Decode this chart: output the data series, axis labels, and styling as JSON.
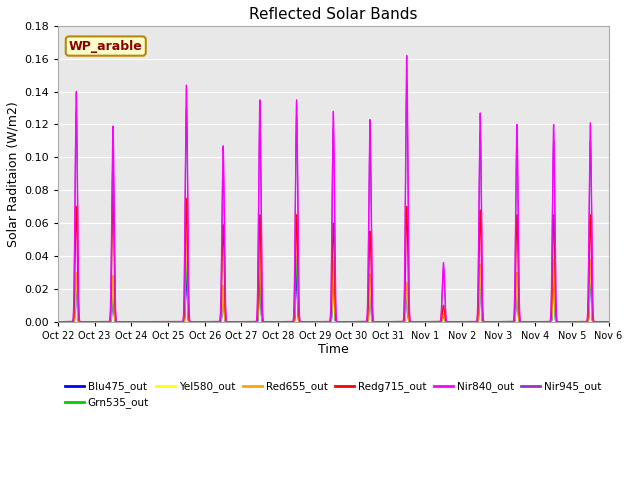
{
  "title": "Reflected Solar Bands",
  "xlabel": "Time",
  "ylabel": "Solar Raditaion (W/m2)",
  "annotation": "WP_arable",
  "ylim": [
    0,
    0.18
  ],
  "yticks": [
    0.0,
    0.02,
    0.04,
    0.06,
    0.08,
    0.1,
    0.12,
    0.14,
    0.16,
    0.18
  ],
  "xtick_labels": [
    "Oct 22",
    "Oct 23",
    "Oct 24",
    "Oct 25",
    "Oct 26",
    "Oct 27",
    "Oct 28",
    "Oct 29",
    "Oct 30",
    "Oct 31",
    "Nov 1",
    "Nov 2",
    "Nov 3",
    "Nov 4",
    "Nov 5",
    "Nov 6"
  ],
  "n_days": 15,
  "legend_entries": [
    "Blu475_out",
    "Grn535_out",
    "Yel580_out",
    "Red655_out",
    "Redg715_out",
    "Nir840_out",
    "Nir945_out"
  ],
  "line_colors": [
    "blue",
    "#00cc00",
    "yellow",
    "#FFA500",
    "red",
    "magenta",
    "#9932CC"
  ],
  "plot_bg": "#e8e8e8",
  "peak_heights_nir840": [
    0.14,
    0.119,
    0.001,
    0.144,
    0.107,
    0.135,
    0.135,
    0.128,
    0.123,
    0.162,
    0.036,
    0.127,
    0.12,
    0.12,
    0.121
  ],
  "peak_heights_blu": [
    0.025,
    0.017,
    0.001,
    0.029,
    0.018,
    0.03,
    0.03,
    0.029,
    0.025,
    0.018,
    0.004,
    0.029,
    0.025,
    0.031,
    0.031
  ],
  "peak_heights_grn": [
    0.027,
    0.028,
    0.001,
    0.038,
    0.02,
    0.04,
    0.04,
    0.032,
    0.027,
    0.022,
    0.004,
    0.032,
    0.027,
    0.033,
    0.033
  ],
  "peak_heights_yel": [
    0.03,
    0.028,
    0.001,
    0.055,
    0.022,
    0.063,
    0.065,
    0.037,
    0.029,
    0.024,
    0.005,
    0.035,
    0.03,
    0.038,
    0.038
  ],
  "peak_heights_red": [
    0.03,
    0.028,
    0.001,
    0.058,
    0.022,
    0.062,
    0.065,
    0.037,
    0.029,
    0.024,
    0.005,
    0.035,
    0.03,
    0.038,
    0.038
  ],
  "peak_heights_redg": [
    0.07,
    0.078,
    0.001,
    0.075,
    0.059,
    0.065,
    0.065,
    0.06,
    0.055,
    0.07,
    0.01,
    0.068,
    0.065,
    0.065,
    0.065
  ],
  "peak_heights_nir945": [
    0.128,
    0.1,
    0.001,
    0.13,
    0.095,
    0.125,
    0.125,
    0.118,
    0.11,
    0.145,
    0.032,
    0.115,
    0.11,
    0.11,
    0.11
  ]
}
